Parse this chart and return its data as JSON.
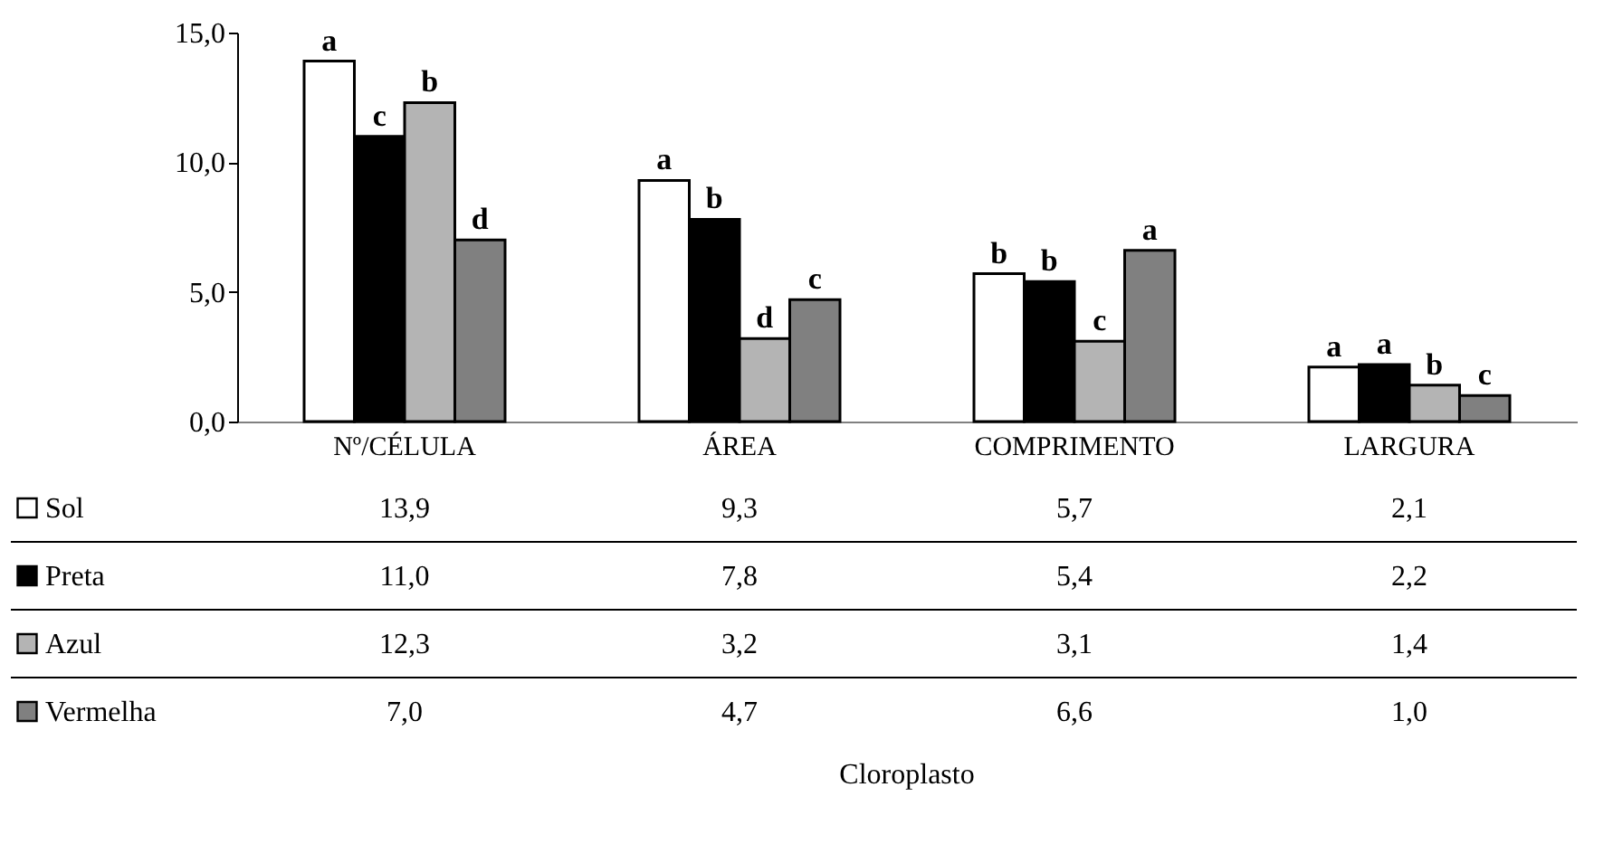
{
  "chart_data": {
    "type": "bar",
    "data_labels": true,
    "categories": [
      "Nº/CÉLULA",
      "ÁREA",
      "COMPRIMENTO",
      "LARGURA"
    ],
    "series": [
      {
        "name": "Sol",
        "color": "#ffffff",
        "values": [
          13.9,
          9.3,
          5.7,
          2.1
        ],
        "value_labels": [
          "13,9",
          "9,3",
          "5,7",
          "2,1"
        ]
      },
      {
        "name": "Preta",
        "color": "#000000",
        "values": [
          11.0,
          7.8,
          5.4,
          2.2
        ],
        "value_labels": [
          "11,0",
          "7,8",
          "5,4",
          "2,2"
        ]
      },
      {
        "name": "Azul",
        "color": "#b4b4b4",
        "values": [
          12.3,
          3.2,
          3.1,
          1.4
        ],
        "value_labels": [
          "12,3",
          "3,2",
          "3,1",
          "1,4"
        ]
      },
      {
        "name": "Vermelha",
        "color": "#808080",
        "values": [
          7.0,
          4.7,
          6.6,
          1.0
        ],
        "value_labels": [
          "7,0",
          "4,7",
          "6,6",
          "1,0"
        ]
      }
    ],
    "annotations": [
      "a",
      "c",
      "b",
      "d",
      "a",
      "b",
      "d",
      "c",
      "b",
      "b",
      "c",
      "a",
      "a",
      "a",
      "b",
      "c",
      "Cloroplasto"
    ],
    "ylim": [
      0,
      15
    ],
    "yticks": [
      {
        "value": 0,
        "label": "0,0"
      },
      {
        "value": 5,
        "label": "5,0"
      },
      {
        "value": 10,
        "label": "10,0"
      },
      {
        "value": 15,
        "label": "15,0"
      }
    ],
    "grid": false,
    "legend": "bottom"
  }
}
